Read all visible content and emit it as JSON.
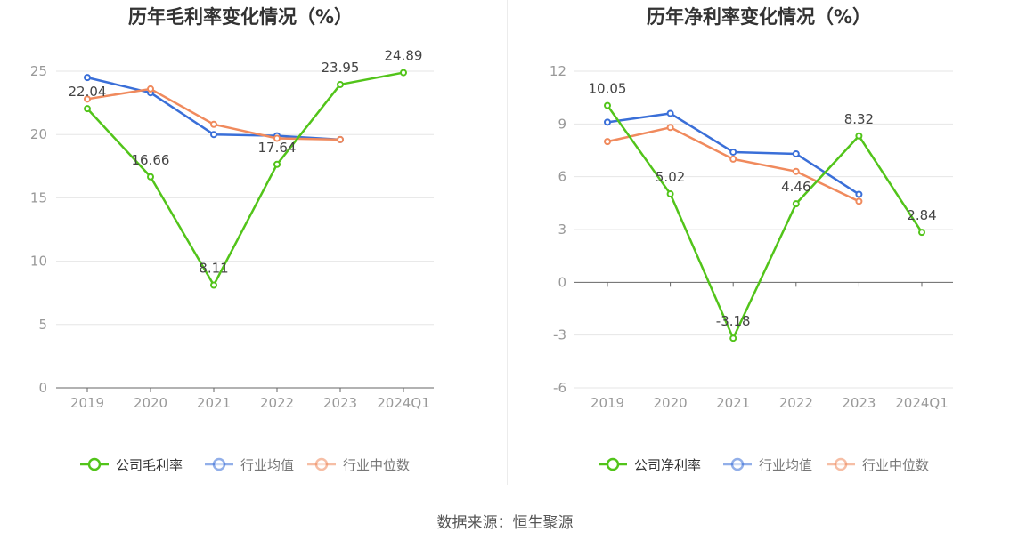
{
  "source": "数据来源：恒生聚源",
  "colors": {
    "company": "#52c41a",
    "avg": "#3a6fd8",
    "median": "#f08a5d",
    "axis_text": "#999999",
    "grid": "#e6e6e6",
    "title": "#333333"
  },
  "chart_data": [
    {
      "type": "line",
      "title": "历年毛利率变化情况（%）",
      "categories": [
        "2019",
        "2020",
        "2021",
        "2022",
        "2023",
        "2024Q1"
      ],
      "ylim": [
        0,
        25
      ],
      "yticks": [
        0,
        5,
        10,
        15,
        20,
        25
      ],
      "ytick_labels": [
        "0",
        "5",
        "10",
        "15",
        "20",
        "25"
      ],
      "series": [
        {
          "name": "公司毛利率",
          "key": "company",
          "values": [
            22.04,
            16.66,
            8.11,
            17.64,
            23.95,
            24.89
          ],
          "labels": [
            "22.04",
            "16.66",
            "8.11",
            "17.64",
            "23.95",
            "24.89"
          ]
        },
        {
          "name": "行业均值",
          "key": "avg",
          "values": [
            24.5,
            23.3,
            20.0,
            19.9,
            19.6,
            null
          ]
        },
        {
          "name": "行业中位数",
          "key": "median",
          "values": [
            22.8,
            23.6,
            20.8,
            19.7,
            19.6,
            null
          ]
        }
      ],
      "legend": "bottom",
      "grid": true
    },
    {
      "type": "line",
      "title": "历年净利率变化情况（%）",
      "categories": [
        "2019",
        "2020",
        "2021",
        "2022",
        "2023",
        "2024Q1"
      ],
      "ylim": [
        -6,
        12
      ],
      "yticks": [
        -6,
        -3,
        0,
        3,
        6,
        9,
        12
      ],
      "ytick_labels": [
        "-6",
        "-3",
        "0",
        "3",
        "6",
        "9",
        "12"
      ],
      "series": [
        {
          "name": "公司净利率",
          "key": "company",
          "values": [
            10.05,
            5.02,
            -3.18,
            4.46,
            8.32,
            2.84
          ],
          "labels": [
            "10.05",
            "5.02",
            "-3.18",
            "4.46",
            "8.32",
            "2.84"
          ]
        },
        {
          "name": "行业均值",
          "key": "avg",
          "values": [
            9.1,
            9.6,
            7.4,
            7.3,
            5.0,
            null
          ]
        },
        {
          "name": "行业中位数",
          "key": "median",
          "values": [
            8.0,
            8.8,
            7.0,
            6.3,
            4.6,
            null
          ]
        }
      ],
      "legend": "bottom",
      "grid": true
    }
  ]
}
